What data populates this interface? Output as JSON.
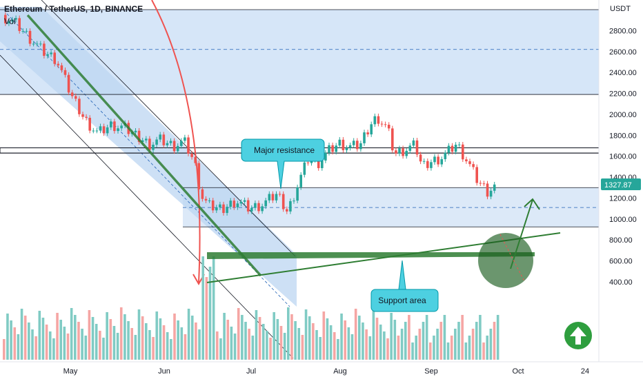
{
  "header": {
    "symbol": "Ethereum / TetherUS, 1D, BINANCE",
    "indicator": "Vol"
  },
  "annotations": {
    "resistance": "Major resistance",
    "support": "Support area"
  },
  "colors": {
    "up": "#26a69a",
    "down": "#ef5350",
    "channel": "#1e5fb4",
    "annotation_fill": "#4dd0e1",
    "trend": "#2e7d32"
  },
  "chart_data": {
    "type": "candlestick",
    "y_axis": {
      "unit": "USDT",
      "ticks": [
        "2800.00",
        "2600.00",
        "2400.00",
        "2200.00",
        "2000.00",
        "1800.00",
        "1600.00",
        "1400.00",
        "1200.00",
        "1000.00",
        "800.00",
        "600.00",
        "400.00"
      ],
      "tick_values": [
        2800,
        2600,
        2400,
        2200,
        2000,
        1800,
        1600,
        1400,
        1200,
        1000,
        800,
        600,
        400
      ],
      "last_price": "1327.87"
    },
    "x_axis": {
      "ticks": [
        "May",
        "Jun",
        "Jul",
        "Aug",
        "Sep",
        "Oct",
        "24"
      ]
    },
    "scale": {
      "ymin": 330,
      "ymax": 3010
    },
    "horizontal_levels": [
      {
        "value": 3000,
        "style": "solid"
      },
      {
        "value": 2620,
        "style": "dashed"
      },
      {
        "value": 2190,
        "style": "solid"
      },
      {
        "value": 1680,
        "style": "box_top"
      },
      {
        "value": 1630,
        "style": "box_bottom"
      },
      {
        "value": 1300,
        "style": "solid"
      },
      {
        "value": 1110,
        "style": "dashed"
      },
      {
        "value": 925,
        "style": "solid"
      }
    ],
    "price_path": [
      [
        0,
        2950
      ],
      [
        20,
        2880
      ],
      [
        40,
        2740
      ],
      [
        60,
        2600
      ],
      [
        80,
        2520
      ],
      [
        100,
        2200
      ],
      [
        120,
        1960
      ],
      [
        140,
        1820
      ],
      [
        160,
        1900
      ],
      [
        180,
        1860
      ],
      [
        200,
        1780
      ],
      [
        215,
        1720
      ],
      [
        230,
        1760
      ],
      [
        250,
        1700
      ],
      [
        265,
        1740
      ],
      [
        280,
        1540
      ],
      [
        290,
        1220
      ],
      [
        300,
        1120
      ],
      [
        320,
        1090
      ],
      [
        340,
        1180
      ],
      [
        360,
        1100
      ],
      [
        380,
        1140
      ],
      [
        400,
        1240
      ],
      [
        415,
        1070
      ],
      [
        430,
        1340
      ],
      [
        445,
        1580
      ],
      [
        460,
        1540
      ],
      [
        475,
        1650
      ],
      [
        490,
        1720
      ],
      [
        505,
        1680
      ],
      [
        520,
        1700
      ],
      [
        535,
        1900
      ],
      [
        545,
        1980
      ],
      [
        560,
        1860
      ],
      [
        570,
        1620
      ],
      [
        585,
        1660
      ],
      [
        600,
        1700
      ],
      [
        610,
        1500
      ],
      [
        625,
        1560
      ],
      [
        640,
        1600
      ],
      [
        660,
        1720
      ],
      [
        675,
        1560
      ],
      [
        690,
        1370
      ],
      [
        705,
        1260
      ],
      [
        718,
        1320
      ]
    ]
  }
}
